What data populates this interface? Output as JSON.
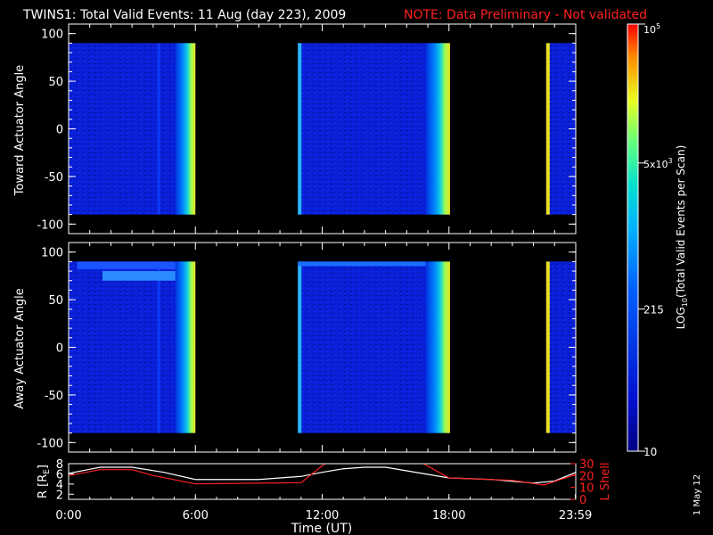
{
  "header": {
    "title": "TWINS1: Total Valid Events: 11 Aug (day 223), 2009",
    "note": "NOTE: Data Preliminary - Not validated",
    "note_color": "#ff2020"
  },
  "side_date": "1 May 12",
  "chart_data": [
    {
      "type": "heatmap",
      "ylabel": "Toward Actuator Angle",
      "ylim": [
        -110,
        110
      ],
      "yticks": [
        100,
        50,
        0,
        -50,
        -100
      ],
      "xlim_hours": [
        0,
        24
      ],
      "data_gaps_hours": [
        [
          6.0,
          10.85
        ],
        [
          18.05,
          22.6
        ]
      ],
      "colorbar": {
        "label_main": "LOG",
        "label_sub": "10",
        "label_rest": "(Total Valid Events per Scan)",
        "ticks": [
          {
            "label": "10",
            "value": 10
          },
          {
            "label": "215",
            "value": 215
          },
          {
            "base": "5x10",
            "exp": "3",
            "value": 5000
          },
          {
            "base": "10",
            "exp": "5",
            "value": 100000
          }
        ],
        "scale": "log",
        "range": [
          10,
          100000
        ]
      }
    },
    {
      "type": "heatmap",
      "ylabel": "Away Actuator Angle",
      "ylim": [
        -110,
        110
      ],
      "yticks": [
        100,
        50,
        0,
        -50,
        -100
      ],
      "xlim_hours": [
        0,
        24
      ],
      "data_gaps_hours": [
        [
          6.0,
          10.85
        ],
        [
          18.05,
          22.6
        ]
      ]
    },
    {
      "type": "line",
      "xlabel": "Time (UT)",
      "xticks": [
        "0:00",
        "6:00",
        "12:00",
        "18:00",
        "23:59"
      ],
      "xtick_hours": [
        0,
        6,
        12,
        18,
        23.983
      ],
      "left_axis": {
        "label_main": "R [R",
        "label_sub": "E",
        "label_close": "]",
        "ticks": [
          2,
          4,
          6,
          8
        ],
        "range": [
          1,
          8
        ]
      },
      "right_axis": {
        "label": "L Shell",
        "ticks": [
          0,
          10,
          20,
          30
        ],
        "range": [
          0,
          30
        ],
        "color": "#ff2020"
      },
      "series": [
        {
          "color": "#ffffff",
          "axis": "left",
          "x": [
            0,
            1,
            1.5,
            3,
            4.5,
            6,
            9,
            11,
            12,
            13,
            14,
            15,
            16,
            18,
            20,
            22,
            23,
            24
          ],
          "y": [
            6.1,
            6.9,
            7.3,
            7.3,
            6.3,
            4.9,
            4.9,
            5.5,
            6.3,
            7.0,
            7.3,
            7.3,
            6.6,
            5.2,
            4.9,
            4.2,
            4.6,
            6.3
          ]
        },
        {
          "color": "#ff2020",
          "axis": "right",
          "x": [
            0,
            1.5,
            3,
            4,
            6,
            11,
            12.2,
            16.7,
            18,
            21,
            22.5,
            24
          ],
          "y": [
            20,
            25,
            25,
            20,
            13,
            14,
            31,
            31,
            18,
            16,
            12,
            21
          ]
        }
      ]
    }
  ]
}
